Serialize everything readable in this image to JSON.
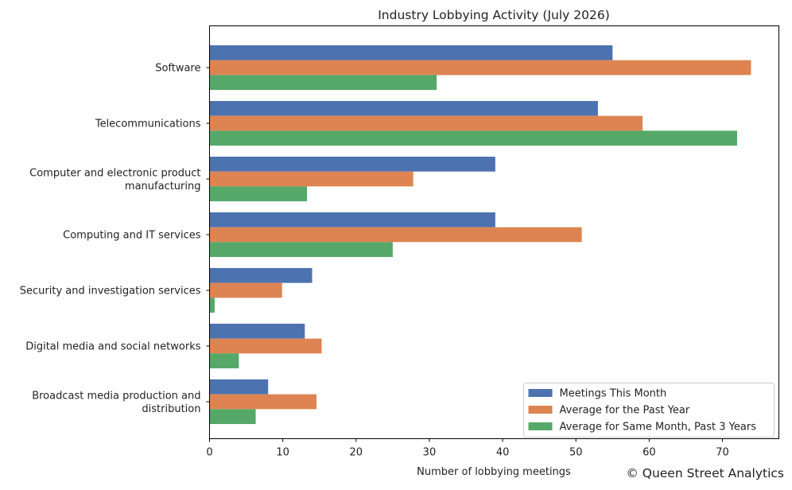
{
  "chart_data": {
    "type": "bar",
    "orientation": "horizontal",
    "title": "Industry Lobbying Activity (July 2026)",
    "xlabel": "Number of lobbying meetings",
    "ylabel": "",
    "xlim": [
      0,
      77.7
    ],
    "xticks": [
      0,
      10,
      20,
      30,
      40,
      50,
      60,
      70
    ],
    "grid": false,
    "legend_position": "lower-right",
    "categories": [
      "Software",
      "Telecommunications",
      "Computer and electronic product\nmanufacturing",
      "Computing and IT services",
      "Security and investigation services",
      "Digital media and social networks",
      "Broadcast media production and\ndistribution"
    ],
    "series": [
      {
        "name": "Meetings This Month",
        "color": "#4c72b0",
        "values": [
          55,
          53,
          39,
          39,
          14,
          13,
          8
        ]
      },
      {
        "name": "Average for the Past Year",
        "color": "#dd8452",
        "values": [
          73.9,
          59.1,
          27.8,
          50.8,
          9.9,
          15.3,
          14.6
        ]
      },
      {
        "name": "Average for Same Month, Past 3 Years",
        "color": "#55a868",
        "values": [
          31,
          72,
          13.3,
          25,
          0.7,
          4,
          6.3
        ]
      }
    ]
  },
  "credit": "© Queen Street Analytics"
}
